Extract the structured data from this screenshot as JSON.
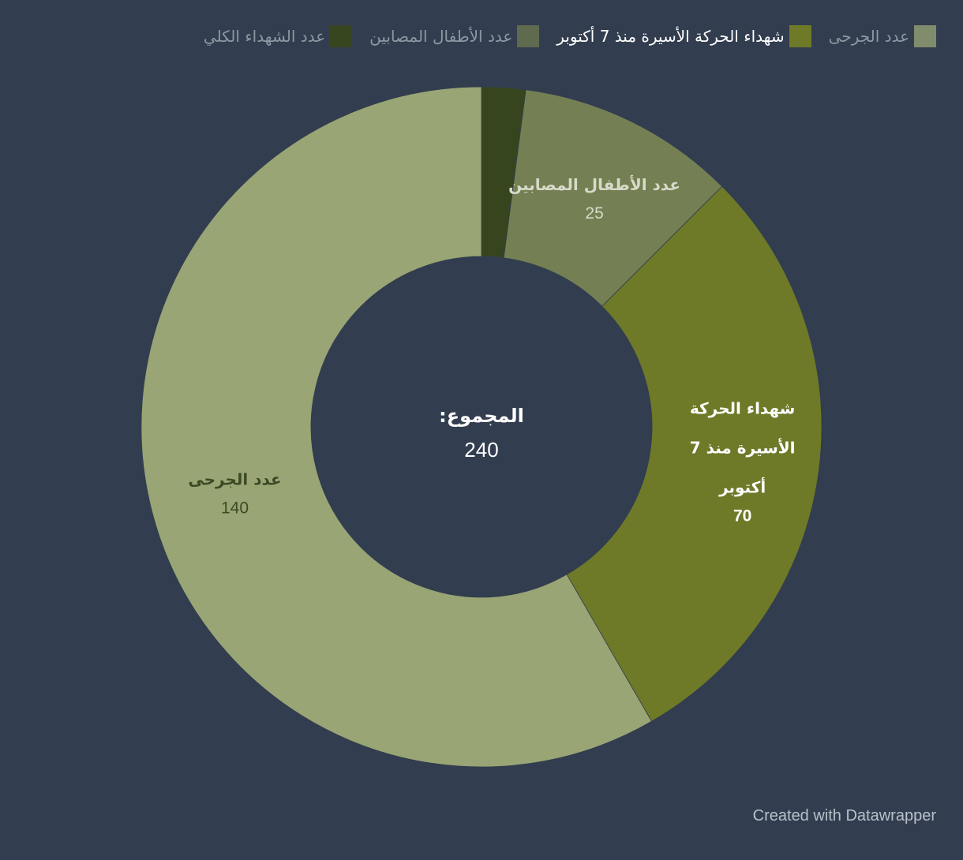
{
  "chart_data": {
    "type": "pie",
    "donut": true,
    "center_label": "المجموع:",
    "center_value": "240",
    "series": [
      {
        "name": "عدد الجرحى",
        "value": 140,
        "value_label": "140",
        "color": "#99a574",
        "label_color": "#3a4a24"
      },
      {
        "name": "شهداء الحركة الأسيرة منذ 7 أكتوبر",
        "value": 70,
        "value_label": "70",
        "color": "#6e7a28",
        "label_color": "#ffffff"
      },
      {
        "name": "عدد الأطفال المصابين",
        "value": 25,
        "value_label": "25",
        "color": "#748053",
        "label_color": "#d6dac8"
      },
      {
        "name": "عدد الشهداء الكلي",
        "value": 5,
        "value_label": "",
        "color": "#37451f",
        "label_color": "#ffffff"
      }
    ],
    "slice_order": [
      3,
      2,
      1,
      0
    ],
    "slice_label_lines": [
      [
        "عدد الجرحى"
      ],
      [
        "شهداء الحركة",
        "الأسيرة منذ 7",
        "أكتوبر"
      ],
      [
        "عدد الأطفال المصابين"
      ],
      []
    ],
    "legend_position": "top-right"
  },
  "legend": {
    "items": [
      {
        "label": "عدد الجرحى",
        "color": "#818c6c",
        "active": false
      },
      {
        "label": "شهداء الحركة الأسيرة منذ 7 أكتوبر",
        "color": "#6e7a28",
        "active": true
      },
      {
        "label": "عدد الأطفال المصابين",
        "color": "#5f6a4f",
        "active": false
      },
      {
        "label": "عدد الشهداء الكلي",
        "color": "#37451f",
        "active": false
      }
    ]
  },
  "footer": {
    "credit": "Created with Datawrapper"
  },
  "colors": {
    "background": "#323d4f"
  }
}
